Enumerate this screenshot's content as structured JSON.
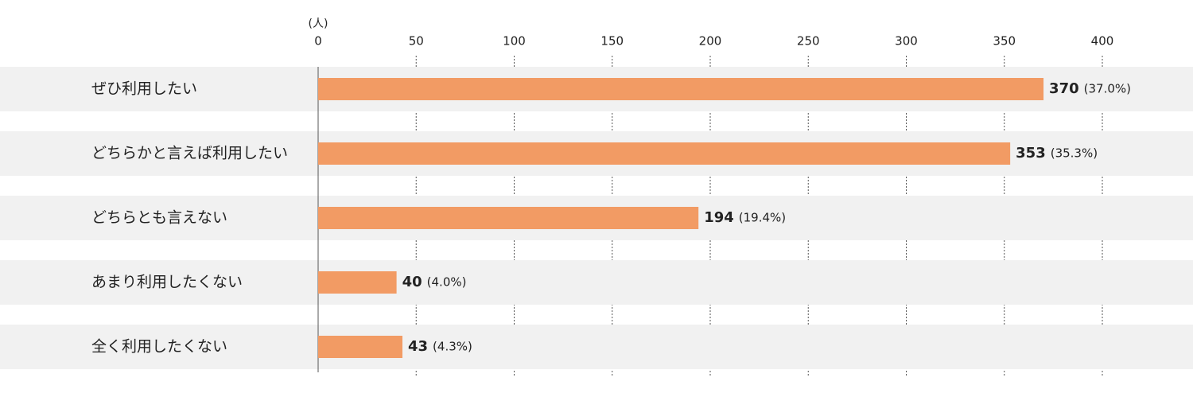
{
  "chart_data": {
    "type": "bar",
    "orientation": "horizontal",
    "unit_label": "(人)",
    "categories": [
      "ぜひ利用したい",
      "どちらかと言えば利用したい",
      "どちらとも言えない",
      "あまり利用したくない",
      "全く利用したくない"
    ],
    "values": [
      370,
      353,
      194,
      40,
      43
    ],
    "percent_labels": [
      "(37.0%)",
      "(35.3%)",
      "(19.4%)",
      "(4.0%)",
      "(4.3%)"
    ],
    "color": "#f29b64",
    "xlim": [
      0,
      400
    ],
    "xticks": [
      0,
      50,
      100,
      150,
      200,
      250,
      300,
      350,
      400
    ],
    "grid": true
  }
}
